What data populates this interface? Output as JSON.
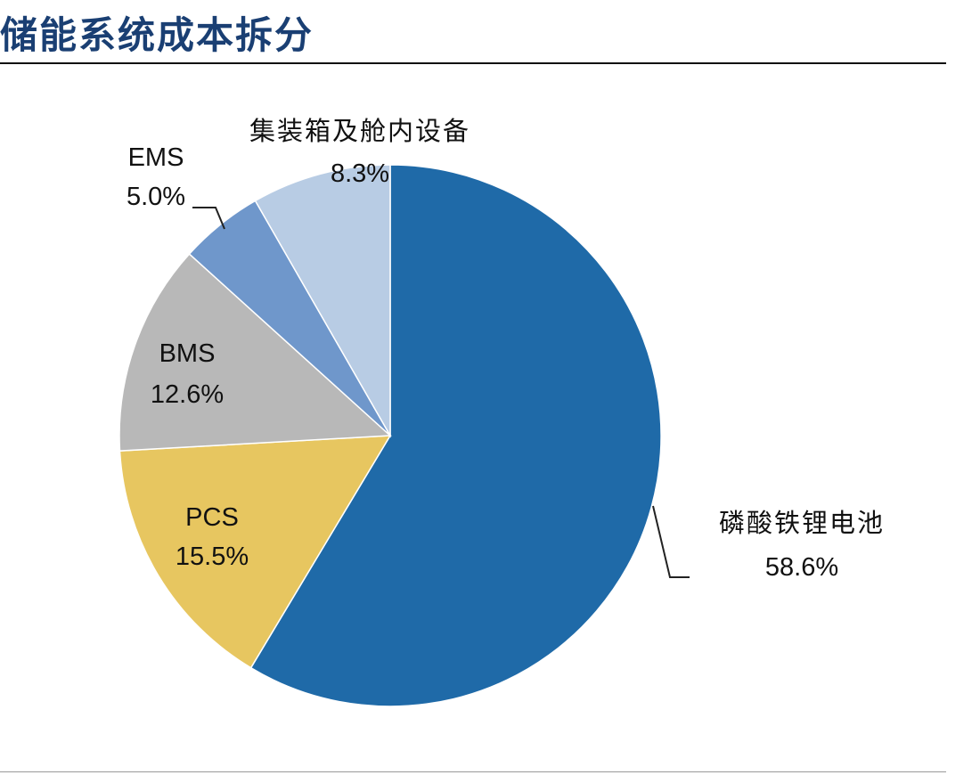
{
  "page": {
    "title": "储能系统成本拆分"
  },
  "chart_data": {
    "type": "pie",
    "title": "储能系统成本拆分",
    "unit": "%",
    "legend": "none",
    "slices": [
      {
        "label": "磷酸铁锂电池",
        "value": 58.6,
        "value_label": "58.6%",
        "color": "#1f6aa8"
      },
      {
        "label": "PCS",
        "value": 15.5,
        "value_label": "15.5%",
        "color": "#e7c660"
      },
      {
        "label": "BMS",
        "value": 12.6,
        "value_label": "12.6%",
        "color": "#b8b8b8"
      },
      {
        "label": "EMS",
        "value": 5.0,
        "value_label": "5.0%",
        "color": "#6f97cb"
      },
      {
        "label": "集装箱及舱内设备",
        "value": 8.3,
        "value_label": "8.3%",
        "color": "#b8cce4"
      }
    ]
  }
}
